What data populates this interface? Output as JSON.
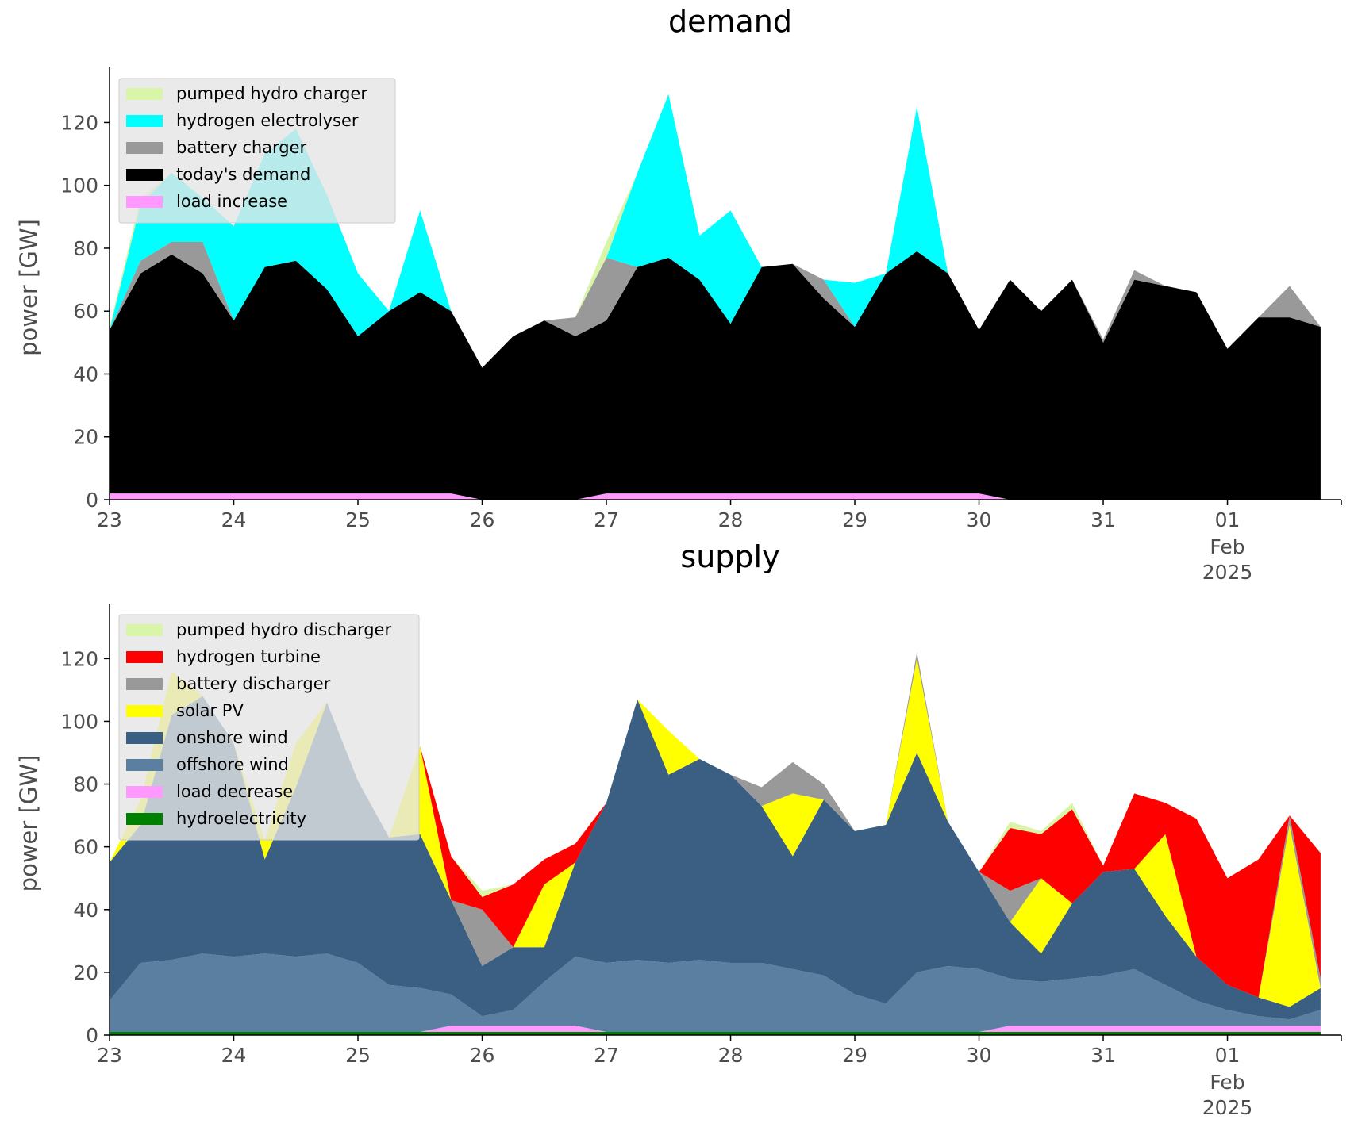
{
  "chart_data": [
    {
      "type": "area",
      "title": "demand",
      "ylabel": "power [GW]",
      "xlabel": "",
      "ylim": [
        0,
        135
      ],
      "xlim": [
        "2025-01-23",
        "2025-02-01 22:00"
      ],
      "grid": false,
      "legend_position": "top-left",
      "x_ticks": [
        "23",
        "24",
        "25",
        "26",
        "27",
        "28",
        "29",
        "30",
        "31",
        "01"
      ],
      "x_tick_extra": [
        "Feb",
        "2025"
      ],
      "y_ticks": [
        0,
        20,
        40,
        60,
        80,
        100,
        120
      ],
      "x": [
        "2025-01-23",
        "2025-01-23 06:00",
        "2025-01-23 12:00",
        "2025-01-23 18:00",
        "2025-01-24",
        "2025-01-24 06:00",
        "2025-01-24 12:00",
        "2025-01-24 18:00",
        "2025-01-25",
        "2025-01-25 06:00",
        "2025-01-25 12:00",
        "2025-01-25 18:00",
        "2025-01-26",
        "2025-01-26 06:00",
        "2025-01-26 12:00",
        "2025-01-26 18:00",
        "2025-01-27",
        "2025-01-27 06:00",
        "2025-01-27 12:00",
        "2025-01-27 18:00",
        "2025-01-28",
        "2025-01-28 06:00",
        "2025-01-28 12:00",
        "2025-01-28 18:00",
        "2025-01-29",
        "2025-01-29 06:00",
        "2025-01-29 12:00",
        "2025-01-29 18:00",
        "2025-01-30",
        "2025-01-30 06:00",
        "2025-01-30 12:00",
        "2025-01-30 18:00",
        "2025-01-31",
        "2025-01-31 06:00",
        "2025-01-31 12:00",
        "2025-01-31 18:00",
        "2025-02-01",
        "2025-02-01 06:00",
        "2025-02-01 12:00",
        "2025-02-01 18:00"
      ],
      "series": [
        {
          "name": "load increase",
          "color": "#ff99ff",
          "values": [
            2,
            2,
            2,
            2,
            2,
            2,
            2,
            2,
            2,
            2,
            2,
            2,
            0,
            0,
            0,
            0,
            2,
            2,
            2,
            2,
            2,
            2,
            2,
            2,
            2,
            2,
            2,
            2,
            2,
            0,
            0,
            0,
            0,
            0,
            0,
            0,
            0,
            0,
            0,
            0
          ]
        },
        {
          "name": "today's demand",
          "color": "#000000",
          "values": [
            52,
            70,
            76,
            70,
            55,
            72,
            74,
            65,
            50,
            58,
            64,
            58,
            42,
            52,
            57,
            52,
            55,
            72,
            75,
            68,
            54,
            72,
            73,
            62,
            53,
            70,
            77,
            70,
            52,
            70,
            60,
            70,
            50,
            70,
            68,
            66,
            48,
            58,
            58,
            55
          ]
        },
        {
          "name": "battery charger",
          "color": "#999999",
          "values": [
            0,
            4,
            4,
            10,
            0,
            0,
            0,
            0,
            0,
            0,
            0,
            0,
            0,
            0,
            0,
            6,
            20,
            0,
            0,
            0,
            0,
            0,
            0,
            6,
            0,
            0,
            0,
            0,
            0,
            0,
            0,
            0,
            1,
            3,
            0,
            0,
            0,
            0,
            10,
            0
          ]
        },
        {
          "name": "hydrogen electrolyser",
          "color": "#00ffff",
          "values": [
            0,
            18,
            22,
            14,
            30,
            36,
            42,
            30,
            20,
            0,
            26,
            0,
            0,
            0,
            0,
            0,
            0,
            30,
            52,
            14,
            36,
            0,
            0,
            0,
            14,
            0,
            46,
            0,
            0,
            0,
            0,
            0,
            0,
            0,
            0,
            0,
            0,
            0,
            0,
            0
          ]
        },
        {
          "name": "pumped hydro charger",
          "color": "#d9f5a8",
          "values": [
            1,
            2,
            0,
            0,
            0,
            0,
            0,
            0,
            0,
            0,
            0,
            0,
            0,
            0,
            0,
            0,
            5,
            0,
            0,
            0,
            0,
            0,
            0,
            0,
            0,
            0,
            0,
            0,
            0,
            0,
            0,
            0,
            0,
            0,
            0,
            0,
            0,
            0,
            0,
            0
          ]
        }
      ]
    },
    {
      "type": "area",
      "title": "supply",
      "ylabel": "power [GW]",
      "xlabel": "",
      "ylim": [
        0,
        135
      ],
      "xlim": [
        "2025-01-23",
        "2025-02-01 22:00"
      ],
      "grid": false,
      "legend_position": "top-left",
      "x_ticks": [
        "23",
        "24",
        "25",
        "26",
        "27",
        "28",
        "29",
        "30",
        "31",
        "01"
      ],
      "x_tick_extra": [
        "Feb",
        "2025"
      ],
      "y_ticks": [
        0,
        20,
        40,
        60,
        80,
        100,
        120
      ],
      "x": [
        "2025-01-23",
        "2025-01-23 06:00",
        "2025-01-23 12:00",
        "2025-01-23 18:00",
        "2025-01-24",
        "2025-01-24 06:00",
        "2025-01-24 12:00",
        "2025-01-24 18:00",
        "2025-01-25",
        "2025-01-25 06:00",
        "2025-01-25 12:00",
        "2025-01-25 18:00",
        "2025-01-26",
        "2025-01-26 06:00",
        "2025-01-26 12:00",
        "2025-01-26 18:00",
        "2025-01-27",
        "2025-01-27 06:00",
        "2025-01-27 12:00",
        "2025-01-27 18:00",
        "2025-01-28",
        "2025-01-28 06:00",
        "2025-01-28 12:00",
        "2025-01-28 18:00",
        "2025-01-29",
        "2025-01-29 06:00",
        "2025-01-29 12:00",
        "2025-01-29 18:00",
        "2025-01-30",
        "2025-01-30 06:00",
        "2025-01-30 12:00",
        "2025-01-30 18:00",
        "2025-01-31",
        "2025-01-31 06:00",
        "2025-01-31 12:00",
        "2025-01-31 18:00",
        "2025-02-01",
        "2025-02-01 06:00",
        "2025-02-01 12:00",
        "2025-02-01 18:00"
      ],
      "series": [
        {
          "name": "hydroelectricity",
          "color": "#008000",
          "values": [
            1,
            1,
            1,
            1,
            1,
            1,
            1,
            1,
            1,
            1,
            1,
            1,
            1,
            1,
            1,
            1,
            1,
            1,
            1,
            1,
            1,
            1,
            1,
            1,
            1,
            1,
            1,
            1,
            1,
            1,
            1,
            1,
            1,
            1,
            1,
            1,
            1,
            1,
            1,
            1
          ]
        },
        {
          "name": "load decrease",
          "color": "#ff99ff",
          "values": [
            0,
            0,
            0,
            0,
            0,
            0,
            0,
            0,
            0,
            0,
            0,
            2,
            2,
            2,
            2,
            2,
            0,
            0,
            0,
            0,
            0,
            0,
            0,
            0,
            0,
            0,
            0,
            0,
            0,
            2,
            2,
            2,
            2,
            2,
            2,
            2,
            2,
            2,
            2,
            2
          ]
        },
        {
          "name": "offshore wind",
          "color": "#5b7fa1",
          "values": [
            10,
            22,
            23,
            25,
            24,
            25,
            24,
            25,
            22,
            15,
            14,
            10,
            3,
            5,
            14,
            22,
            22,
            23,
            22,
            23,
            22,
            22,
            20,
            18,
            12,
            9,
            19,
            21,
            20,
            15,
            14,
            15,
            16,
            18,
            13,
            8,
            5,
            3,
            2,
            5
          ]
        },
        {
          "name": "onshore wind",
          "color": "#3b5f82",
          "values": [
            44,
            44,
            78,
            82,
            68,
            30,
            54,
            80,
            58,
            47,
            49,
            30,
            16,
            20,
            11,
            30,
            51,
            83,
            60,
            64,
            60,
            50,
            36,
            56,
            52,
            57,
            70,
            46,
            31,
            18,
            9,
            24,
            33,
            32,
            22,
            14,
            8,
            6,
            4,
            7
          ]
        },
        {
          "name": "solar PV",
          "color": "#ffff00",
          "values": [
            0,
            8,
            14,
            0,
            0,
            6,
            14,
            0,
            0,
            0,
            28,
            0,
            0,
            0,
            20,
            0,
            0,
            0,
            14,
            0,
            0,
            0,
            20,
            0,
            0,
            0,
            30,
            0,
            0,
            0,
            24,
            0,
            0,
            0,
            26,
            0,
            0,
            0,
            58,
            0
          ]
        },
        {
          "name": "battery discharger",
          "color": "#999999",
          "values": [
            0,
            0,
            0,
            0,
            0,
            0,
            0,
            0,
            0,
            0,
            0,
            0,
            18,
            0,
            0,
            0,
            0,
            0,
            0,
            0,
            0,
            6,
            10,
            5,
            0,
            0,
            2,
            0,
            0,
            10,
            0,
            0,
            0,
            0,
            0,
            0,
            0,
            0,
            3,
            3
          ]
        },
        {
          "name": "hydrogen turbine",
          "color": "#ff0000",
          "values": [
            0,
            0,
            0,
            0,
            0,
            0,
            0,
            0,
            0,
            0,
            0,
            14,
            4,
            20,
            8,
            6,
            0,
            0,
            0,
            0,
            0,
            0,
            0,
            0,
            0,
            0,
            0,
            0,
            0,
            20,
            14,
            30,
            2,
            24,
            10,
            44,
            34,
            44,
            0,
            40
          ]
        },
        {
          "name": "pumped hydro discharger",
          "color": "#d9f5a8",
          "values": [
            0,
            0,
            0,
            0,
            0,
            0,
            0,
            0,
            0,
            0,
            0,
            0,
            2,
            0,
            0,
            0,
            0,
            0,
            0,
            0,
            0,
            0,
            0,
            0,
            0,
            0,
            0,
            0,
            0,
            2,
            1,
            2,
            0,
            0,
            0,
            0,
            0,
            0,
            0,
            0
          ]
        }
      ]
    }
  ]
}
